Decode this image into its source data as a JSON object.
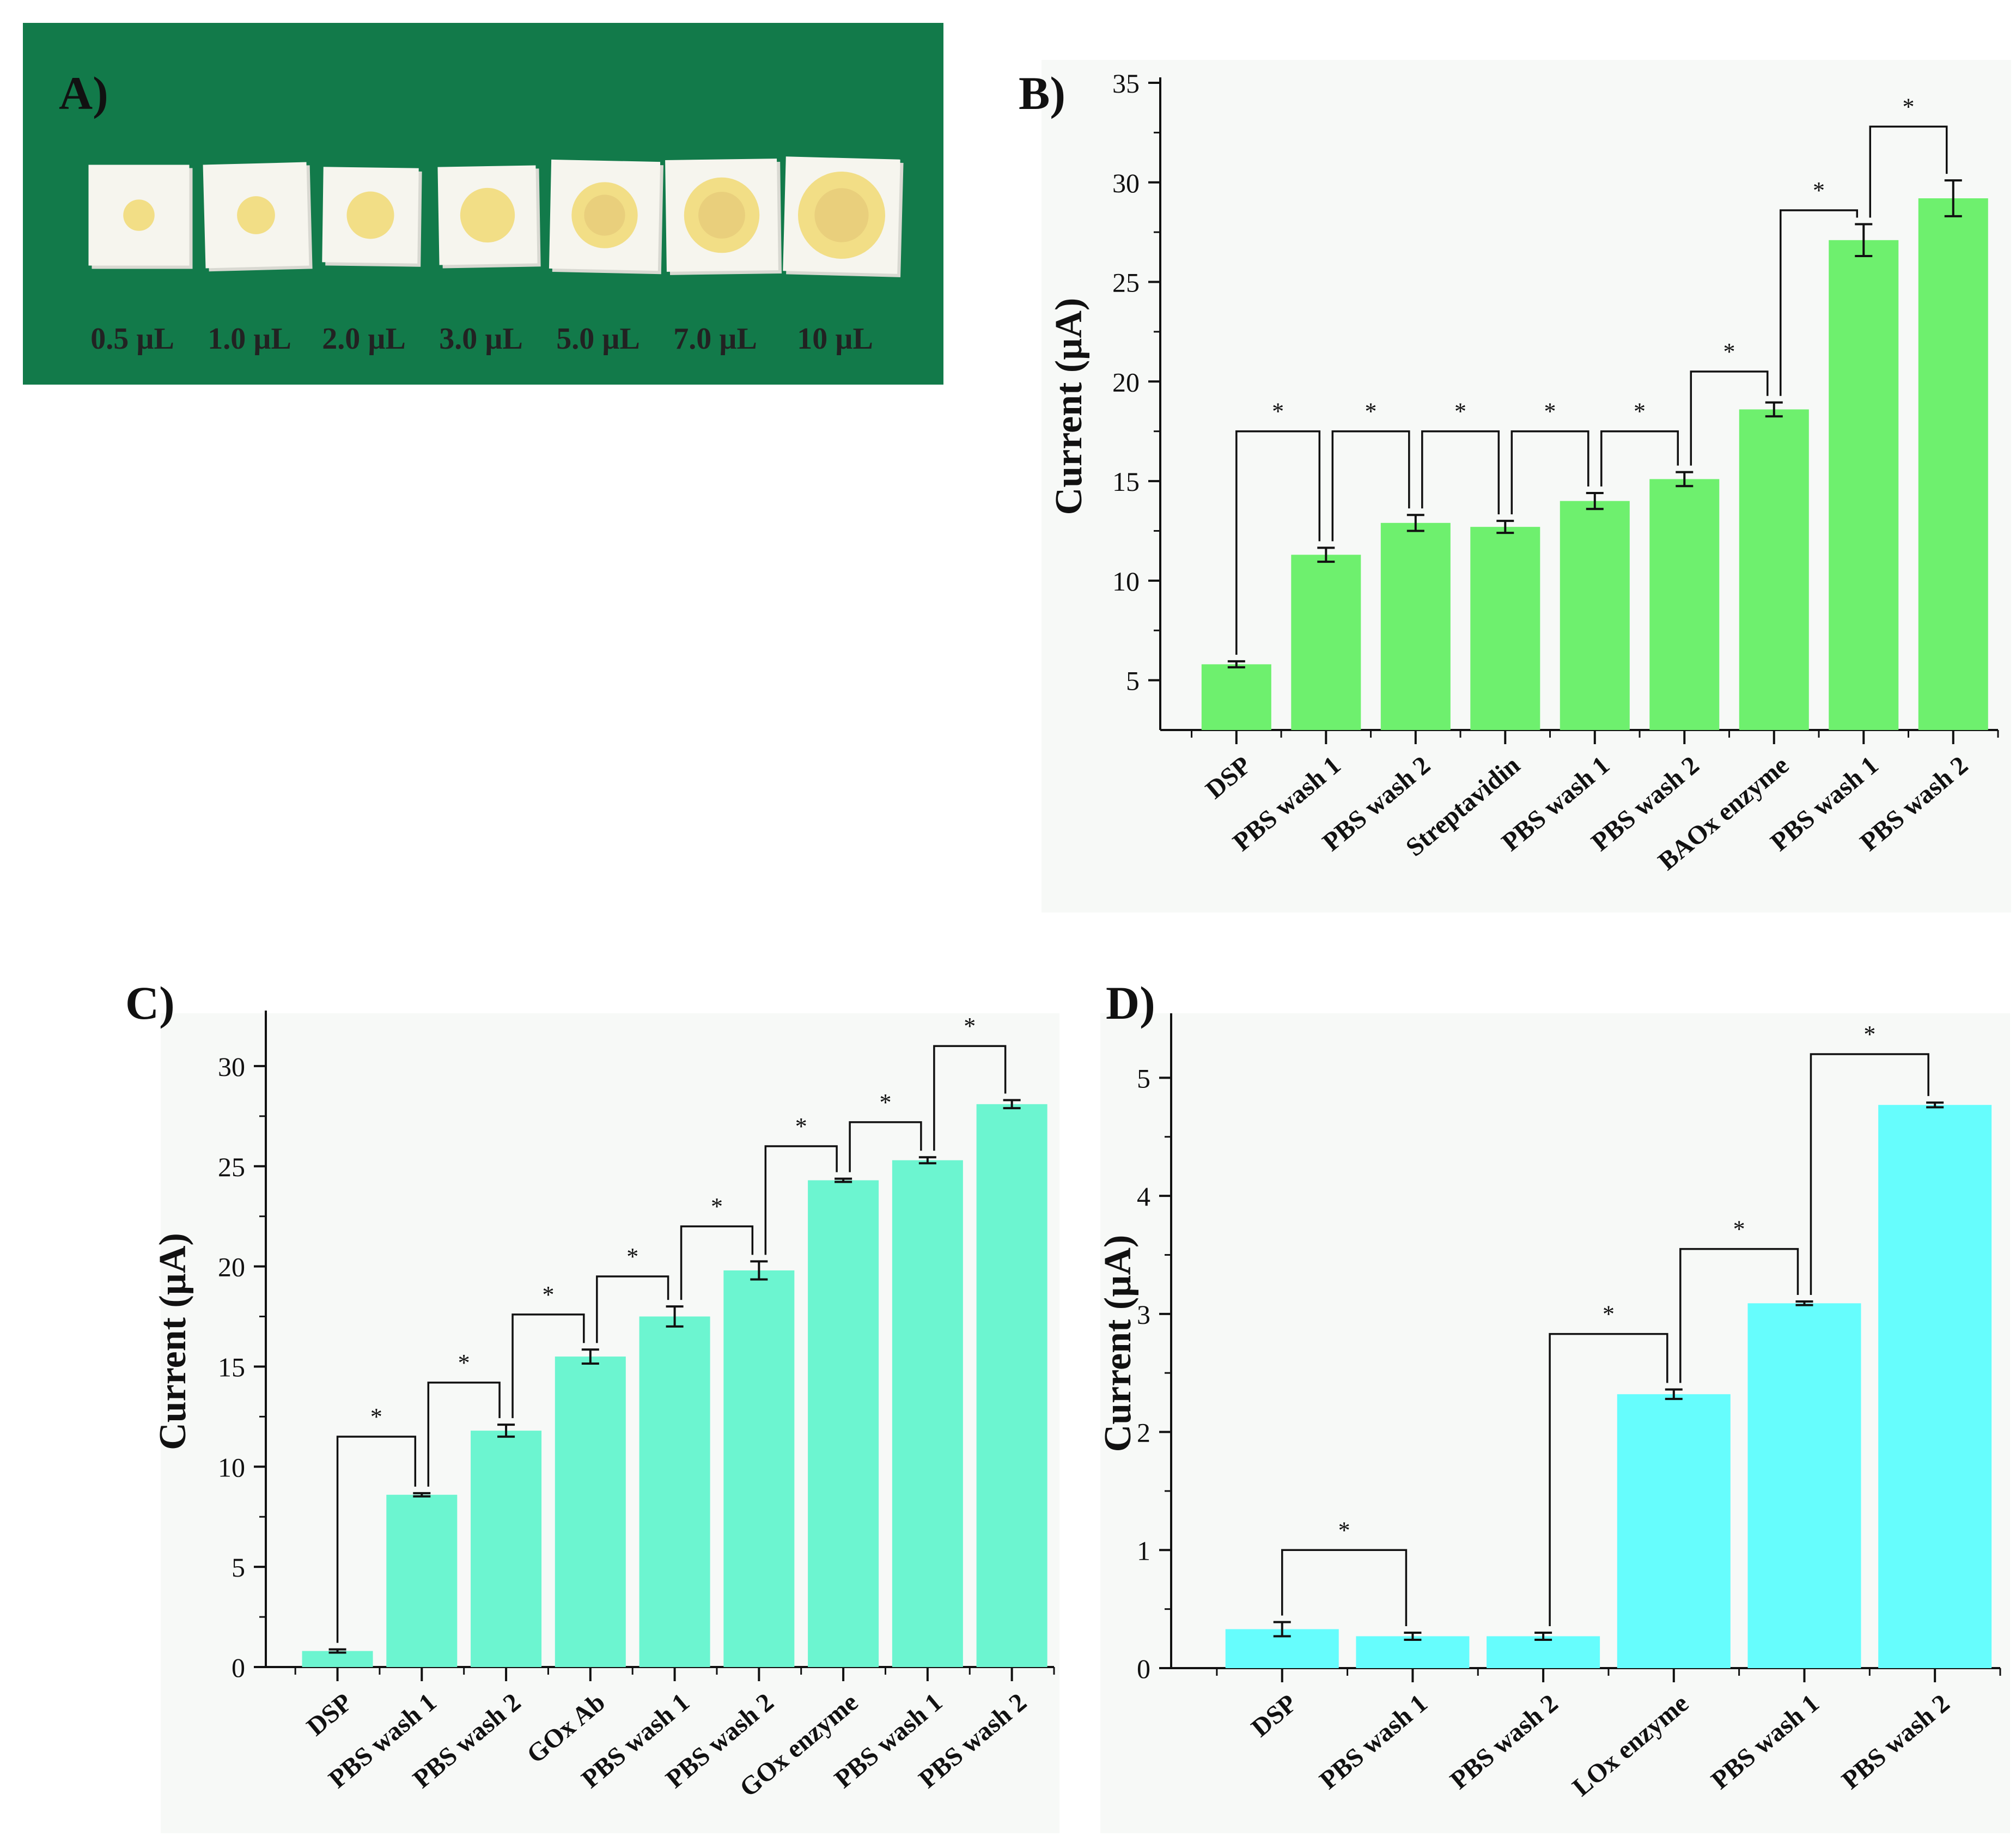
{
  "panel_a": {
    "label": "A)",
    "background_color": "#127a4a",
    "volumes": [
      "0.5 µL",
      "1.0 µL",
      "2.0 µL",
      "3.0 µL",
      "5.0 µL",
      "7.0 µL",
      "10 µL"
    ],
    "spot_amount": [
      0.5,
      1.0,
      2.0,
      3.0,
      5.0,
      7.0,
      10.0
    ]
  },
  "chart_data": [
    {
      "id": "B",
      "panel_label": "B)",
      "type": "bar",
      "color": "#6ef06e",
      "ylabel": "Current (µA)",
      "ylim": [
        2.5,
        35
      ],
      "yticks": [
        5,
        10,
        15,
        20,
        25,
        30,
        35
      ],
      "categories": [
        "DSP",
        "PBS wash 1",
        "PBS wash 2",
        "Streptavidin",
        "PBS wash 1",
        "PBS wash 2",
        "BAOx enzyme",
        "PBS wash 1",
        "PBS wash 2"
      ],
      "values": [
        5.8,
        11.3,
        12.9,
        12.7,
        14.0,
        15.1,
        18.6,
        27.1,
        29.2
      ],
      "errors": [
        0.15,
        0.35,
        0.4,
        0.3,
        0.4,
        0.35,
        0.35,
        0.8,
        0.9
      ],
      "significance": [
        {
          "from": 0,
          "to": 1,
          "level": 17.5,
          "label": "*"
        },
        {
          "from": 1,
          "to": 2,
          "level": 17.5,
          "label": "*"
        },
        {
          "from": 2,
          "to": 3,
          "level": 17.5,
          "label": "*"
        },
        {
          "from": 3,
          "to": 4,
          "level": 17.5,
          "label": "*"
        },
        {
          "from": 4,
          "to": 5,
          "level": 17.5,
          "label": "*"
        },
        {
          "from": 5,
          "to": 6,
          "level": 20.5,
          "label": "*"
        },
        {
          "from": 6,
          "to": 7,
          "level": 28.6,
          "label": "*"
        },
        {
          "from": 7,
          "to": 8,
          "level": 32.8,
          "label": "*"
        }
      ]
    },
    {
      "id": "C",
      "panel_label": "C)",
      "type": "bar",
      "color": "#6cf5d0",
      "ylabel": "Current (µA)",
      "ylim": [
        0,
        32.5
      ],
      "yticks": [
        0,
        5,
        10,
        15,
        20,
        25,
        30
      ],
      "categories": [
        "DSP",
        "PBS wash 1",
        "PBS wash 2",
        "GOx Ab",
        "PBS wash 1",
        "PBS wash 2",
        "GOx enzyme",
        "PBS wash 1",
        "PBS wash 2"
      ],
      "values": [
        0.8,
        8.6,
        11.8,
        15.5,
        17.5,
        19.8,
        24.3,
        25.3,
        28.1
      ],
      "errors": [
        0.08,
        0.08,
        0.3,
        0.35,
        0.5,
        0.45,
        0.08,
        0.15,
        0.2
      ],
      "significance": [
        {
          "from": 0,
          "to": 1,
          "level": 11.5,
          "label": "*"
        },
        {
          "from": 1,
          "to": 2,
          "level": 14.2,
          "label": "*"
        },
        {
          "from": 2,
          "to": 3,
          "level": 17.6,
          "label": "*"
        },
        {
          "from": 3,
          "to": 4,
          "level": 19.5,
          "label": "*"
        },
        {
          "from": 4,
          "to": 5,
          "level": 22.0,
          "label": "*"
        },
        {
          "from": 5,
          "to": 6,
          "level": 26.0,
          "label": "*"
        },
        {
          "from": 6,
          "to": 7,
          "level": 27.2,
          "label": "*"
        },
        {
          "from": 7,
          "to": 8,
          "level": 31.0,
          "label": "*"
        }
      ]
    },
    {
      "id": "D",
      "panel_label": "D)",
      "type": "bar",
      "color": "#66fdfd",
      "ylabel": "Current (µA)",
      "ylim": [
        0,
        5.5
      ],
      "yticks": [
        0,
        1,
        2,
        3,
        4,
        5
      ],
      "categories": [
        "DSP",
        "PBS wash 1",
        "PBS wash 2",
        "LOx enzyme",
        "PBS wash 1",
        "PBS wash 2"
      ],
      "values": [
        0.33,
        0.27,
        0.27,
        2.32,
        3.09,
        4.77
      ],
      "errors": [
        0.06,
        0.03,
        0.03,
        0.04,
        0.015,
        0.02
      ],
      "significance": [
        {
          "from": 0,
          "to": 1,
          "level": 1.0,
          "label": "*"
        },
        {
          "from": 2,
          "to": 3,
          "level": 2.83,
          "label": "*"
        },
        {
          "from": 3,
          "to": 4,
          "level": 3.55,
          "label": "*"
        },
        {
          "from": 4,
          "to": 5,
          "level": 5.2,
          "label": "*"
        }
      ]
    }
  ]
}
